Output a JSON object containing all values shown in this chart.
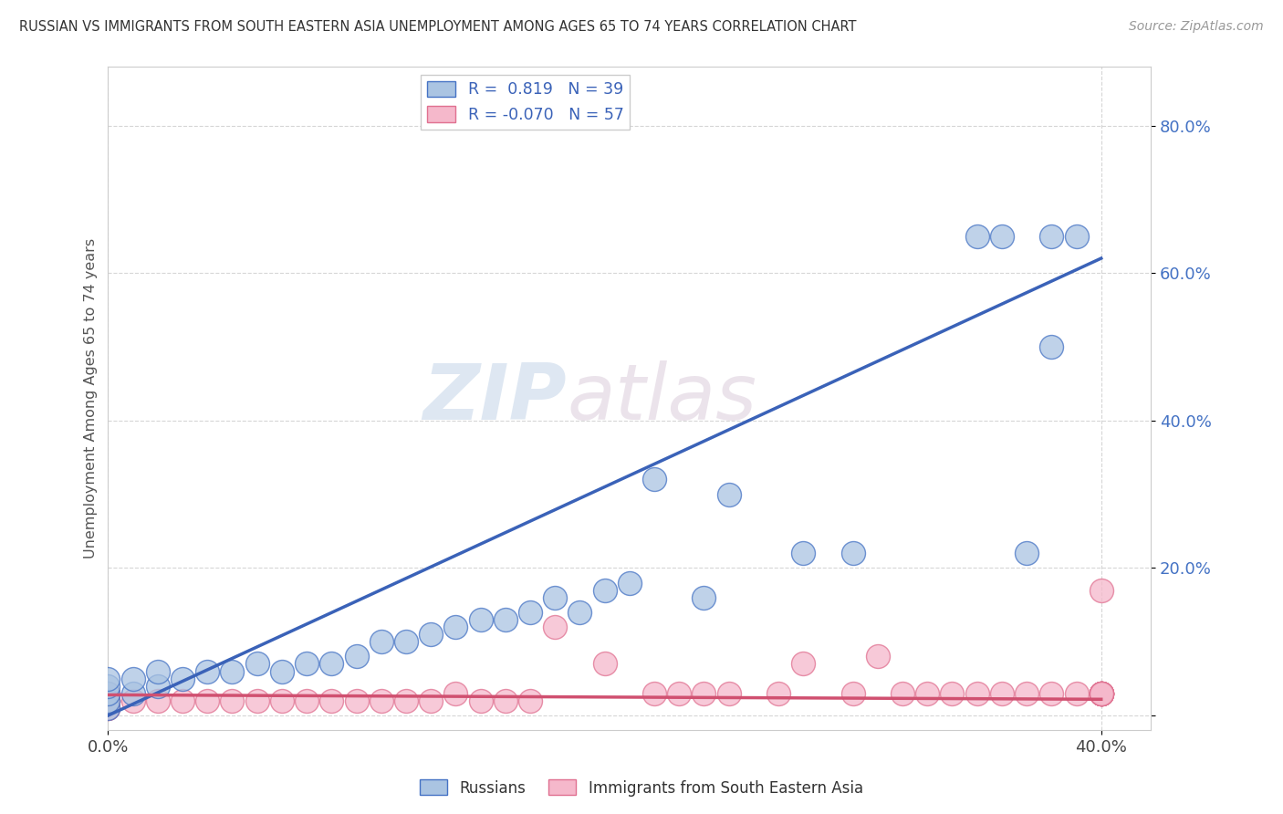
{
  "title": "RUSSIAN VS IMMIGRANTS FROM SOUTH EASTERN ASIA UNEMPLOYMENT AMONG AGES 65 TO 74 YEARS CORRELATION CHART",
  "source": "Source: ZipAtlas.com",
  "ylabel": "Unemployment Among Ages 65 to 74 years",
  "xlim": [
    0.0,
    0.42
  ],
  "ylim": [
    -0.02,
    0.88
  ],
  "ytick_vals": [
    0.0,
    0.2,
    0.4,
    0.6,
    0.8
  ],
  "ytick_labels": [
    "",
    "20.0%",
    "40.0%",
    "60.0%",
    "80.0%"
  ],
  "xtick_vals": [
    0.0,
    0.4
  ],
  "xtick_labels": [
    "0.0%",
    "40.0%"
  ],
  "legend_r_russian": "0.819",
  "legend_n_russian": "39",
  "legend_r_sea": "-0.070",
  "legend_n_sea": "57",
  "russian_face_color": "#aac4e2",
  "russian_edge_color": "#4472c4",
  "sea_face_color": "#f5b8cb",
  "sea_edge_color": "#e07090",
  "russian_line_color": "#3a62b8",
  "sea_line_color": "#d05070",
  "watermark_zip": "ZIP",
  "watermark_atlas": "atlas",
  "ru_x": [
    0.0,
    0.0,
    0.0,
    0.0,
    0.0,
    0.01,
    0.01,
    0.02,
    0.02,
    0.03,
    0.04,
    0.05,
    0.06,
    0.07,
    0.08,
    0.09,
    0.1,
    0.11,
    0.12,
    0.13,
    0.14,
    0.15,
    0.16,
    0.17,
    0.18,
    0.19,
    0.2,
    0.21,
    0.22,
    0.24,
    0.25,
    0.28,
    0.3,
    0.35,
    0.36,
    0.37,
    0.38,
    0.38,
    0.39
  ],
  "ru_y": [
    0.01,
    0.02,
    0.03,
    0.04,
    0.05,
    0.03,
    0.05,
    0.04,
    0.06,
    0.05,
    0.06,
    0.06,
    0.07,
    0.06,
    0.07,
    0.07,
    0.08,
    0.1,
    0.1,
    0.11,
    0.12,
    0.13,
    0.13,
    0.14,
    0.16,
    0.14,
    0.17,
    0.18,
    0.32,
    0.16,
    0.3,
    0.22,
    0.22,
    0.65,
    0.65,
    0.22,
    0.5,
    0.65,
    0.65
  ],
  "sea_x": [
    0.0,
    0.0,
    0.0,
    0.0,
    0.0,
    0.0,
    0.0,
    0.0,
    0.0,
    0.0,
    0.01,
    0.02,
    0.03,
    0.04,
    0.05,
    0.06,
    0.07,
    0.08,
    0.09,
    0.1,
    0.11,
    0.12,
    0.13,
    0.14,
    0.15,
    0.16,
    0.17,
    0.18,
    0.2,
    0.22,
    0.23,
    0.24,
    0.25,
    0.27,
    0.28,
    0.3,
    0.31,
    0.32,
    0.33,
    0.34,
    0.35,
    0.36,
    0.37,
    0.38,
    0.39,
    0.4,
    0.4,
    0.4,
    0.4,
    0.4,
    0.4,
    0.4,
    0.4,
    0.4,
    0.4,
    0.4,
    0.4
  ],
  "sea_y": [
    0.01,
    0.01,
    0.02,
    0.02,
    0.02,
    0.02,
    0.02,
    0.03,
    0.03,
    0.03,
    0.02,
    0.02,
    0.02,
    0.02,
    0.02,
    0.02,
    0.02,
    0.02,
    0.02,
    0.02,
    0.02,
    0.02,
    0.02,
    0.03,
    0.02,
    0.02,
    0.02,
    0.12,
    0.07,
    0.03,
    0.03,
    0.03,
    0.03,
    0.03,
    0.07,
    0.03,
    0.08,
    0.03,
    0.03,
    0.03,
    0.03,
    0.03,
    0.03,
    0.03,
    0.03,
    0.03,
    0.03,
    0.03,
    0.03,
    0.03,
    0.03,
    0.17,
    0.03,
    0.03,
    0.03,
    0.03,
    0.03
  ],
  "ru_trend_x": [
    0.0,
    0.4
  ],
  "ru_trend_y": [
    0.0,
    0.62
  ],
  "sea_trend_x": [
    0.0,
    0.4
  ],
  "sea_trend_y": [
    0.028,
    0.022
  ]
}
